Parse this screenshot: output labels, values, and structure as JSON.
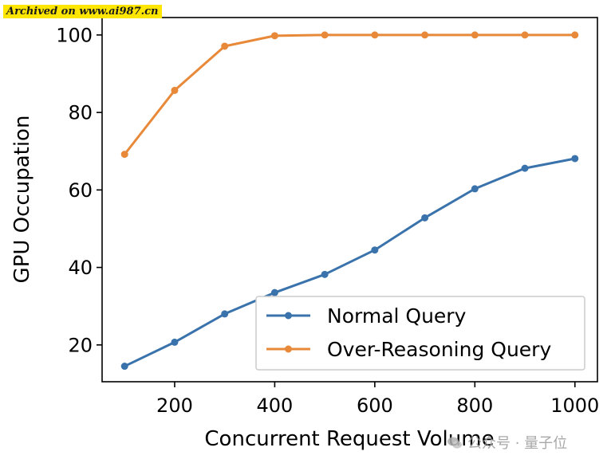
{
  "watermark": {
    "archived": "Archived on www.ai987.cn",
    "channel": "公众号 · 量子位",
    "icon": "wechat-icon"
  },
  "colors": {
    "normal": "#3a73ac",
    "over": "#e8893a",
    "axis": "#000000",
    "legend_border": "#cccccc"
  },
  "chart_data": {
    "type": "line",
    "title": "",
    "xlabel": "Concurrent Request Volume",
    "ylabel": "GPU Occupation",
    "x": [
      100,
      200,
      300,
      400,
      500,
      600,
      700,
      800,
      900,
      1000
    ],
    "xlim": [
      55,
      1045
    ],
    "ylim": [
      10.5,
      104.5
    ],
    "xticks": [
      200,
      400,
      600,
      800,
      1000
    ],
    "yticks": [
      20,
      40,
      60,
      80,
      100
    ],
    "grid": false,
    "legend_position": "lower-right",
    "series": [
      {
        "name": "Normal Query",
        "color": "#3a73ac",
        "values": [
          14.5,
          20.7,
          28.0,
          33.5,
          38.2,
          44.5,
          52.8,
          60.3,
          65.6,
          68.1
        ]
      },
      {
        "name": "Over-Reasoning Query",
        "color": "#e8893a",
        "values": [
          69.2,
          85.7,
          97.1,
          99.8,
          100.0,
          100.0,
          100.0,
          100.0,
          100.0,
          100.0
        ]
      }
    ]
  }
}
